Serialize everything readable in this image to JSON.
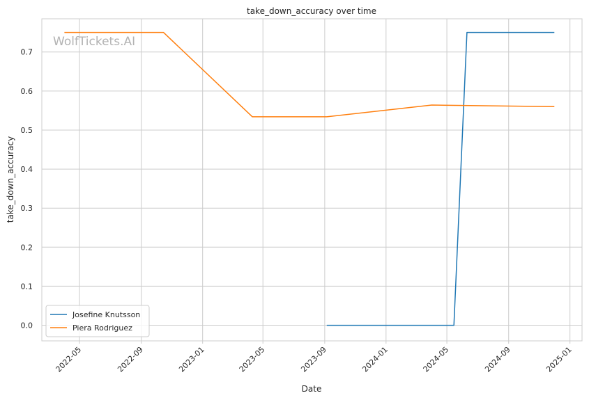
{
  "chart_data": {
    "type": "line",
    "title": "take_down_accuracy over time",
    "xlabel": "Date",
    "ylabel": "take_down_accuracy",
    "watermark": "WolfTickets.AI",
    "x_ticks": [
      "2022-05",
      "2022-09",
      "2023-01",
      "2023-05",
      "2023-09",
      "2024-01",
      "2024-05",
      "2024-09",
      "2025-01"
    ],
    "y_ticks": [
      "0.0",
      "0.1",
      "0.2",
      "0.3",
      "0.4",
      "0.5",
      "0.6",
      "0.7"
    ],
    "xlim": [
      "2022-02-15",
      "2025-01-25"
    ],
    "ylim": [
      -0.04,
      0.785
    ],
    "grid": true,
    "legend_position": "lower-left",
    "series": [
      {
        "name": "Josefine Knutsson",
        "color": "#1f77b4",
        "x": [
          "2023-09-05",
          "2024-05-15",
          "2024-06-10",
          "2024-12-01"
        ],
        "y": [
          0.0,
          0.0,
          0.75,
          0.75
        ]
      },
      {
        "name": "Piera Rodriguez",
        "color": "#ff7f0e",
        "x": [
          "2022-04-01",
          "2022-10-15",
          "2023-04-10",
          "2023-09-05",
          "2024-04-01",
          "2024-12-01"
        ],
        "y": [
          0.75,
          0.75,
          0.534,
          0.534,
          0.564,
          0.56
        ]
      }
    ]
  }
}
